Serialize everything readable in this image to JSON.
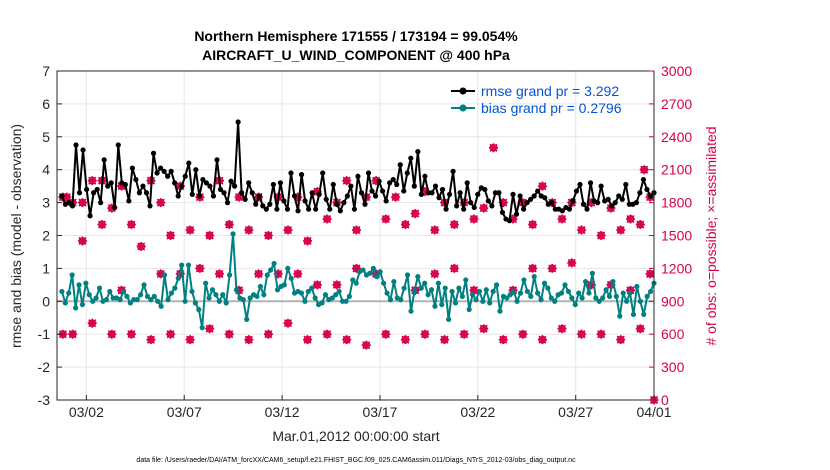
{
  "chart_data": {
    "type": "line",
    "title_line1": "Northern Hemisphere 171555 / 173194 = 99.054%",
    "title_line2": "AIRCRAFT_U_WIND_COMPONENT @ 400 hPa",
    "xlabel": "Mar.01,2012 00:00:00 start",
    "ylabel_left": "rmse and bias (model - observation)",
    "ylabel_right": "# of obs: o=possible; ×=assimilated",
    "footnote": "data file: /Users/raeder/DAI/ATM_forcXX/CAM6_setup/f.e21.FHIST_BGC.f09_025.CAM6assim.011/Diags_NTrS_2012-03/obs_diag_output.nc",
    "xlim": [
      0.5,
      31.0
    ],
    "ylim_left": [
      -3,
      7
    ],
    "ylim_right": [
      0,
      3000
    ],
    "grid": true,
    "x_ticks": [
      {
        "x": 2,
        "label": "03/02"
      },
      {
        "x": 7,
        "label": "03/07"
      },
      {
        "x": 12,
        "label": "03/12"
      },
      {
        "x": 17,
        "label": "03/17"
      },
      {
        "x": 22,
        "label": "03/22"
      },
      {
        "x": 27,
        "label": "03/27"
      },
      {
        "x": 31,
        "label": "04/01"
      }
    ],
    "y_ticks_left": [
      -3,
      -2,
      -1,
      0,
      1,
      2,
      3,
      4,
      5,
      6,
      7
    ],
    "y_ticks_right": [
      0,
      300,
      600,
      900,
      1200,
      1500,
      1800,
      2100,
      2400,
      2700,
      3000
    ],
    "legend": [
      {
        "label": "rmse grand pr = 3.292",
        "color": "#000000"
      },
      {
        "label": "bias grand pr = 0.2796",
        "color": "#008080"
      }
    ],
    "colors": {
      "rmse": "#000000",
      "bias": "#008080",
      "obs": "#d6004f",
      "zero": "#b3b3b3"
    },
    "rmse": [
      3.2,
      2.95,
      3.0,
      2.9,
      4.75,
      3.3,
      4.6,
      3.4,
      2.6,
      3.3,
      3.4,
      3.0,
      4.3,
      3.5,
      3.6,
      2.85,
      4.75,
      3.6,
      3.55,
      3.05,
      4.05,
      3.7,
      3.3,
      3.5,
      3.3,
      2.9,
      4.5,
      3.9,
      4.05,
      3.95,
      3.8,
      3.95,
      3.6,
      3.2,
      3.5,
      3.8,
      4.2,
      3.25,
      4.0,
      3.2,
      3.7,
      3.6,
      3.5,
      3.2,
      4.3,
      3.4,
      3.3,
      3.0,
      3.65,
      3.5,
      5.45,
      3.3,
      3.1,
      3.6,
      3.3,
      2.95,
      3.2,
      2.9,
      2.8,
      2.95,
      3.55,
      2.8,
      3.6,
      3.05,
      2.8,
      3.9,
      3.2,
      2.75,
      3.85,
      3.05,
      2.8,
      3.3,
      2.8,
      3.25,
      3.9,
      3.1,
      2.8,
      3.55,
      2.95,
      2.75,
      3.0,
      3.2,
      3.5,
      2.8,
      3.8,
      3.3,
      2.95,
      3.9,
      3.35,
      3.2,
      3.65,
      3.35,
      3.05,
      3.6,
      3.7,
      3.55,
      4.15,
      3.35,
      3.9,
      4.35,
      3.5,
      4.55,
      3.25,
      3.8,
      3.3,
      3.3,
      3.5,
      3.15,
      3.4,
      2.8,
      3.25,
      3.95,
      2.9,
      3.3,
      2.8,
      3.6,
      3.0,
      2.85,
      3.25,
      3.45,
      3.4,
      3.05,
      2.9,
      3.3,
      3.3,
      2.7,
      2.5,
      2.45,
      3.25,
      2.65,
      3.2,
      2.8,
      3.0,
      3.1,
      3.2,
      3.35,
      3.2,
      3.15,
      2.95,
      3.0,
      2.8,
      2.8,
      2.75,
      2.85,
      2.8,
      3.05,
      3.35,
      3.55,
      2.95,
      2.8,
      3.6,
      3.05,
      3.0,
      3.5,
      3.05,
      3.1,
      2.9,
      3.0,
      3.2,
      3.1,
      3.55,
      2.95,
      2.95,
      3.0,
      3.3,
      3.7,
      3.4,
      3.2,
      3.3
    ],
    "bias": [
      0.3,
      -0.05,
      0.25,
      0.8,
      -0.2,
      0.5,
      -0.1,
      0.55,
      0.2,
      0.0,
      0.1,
      0.4,
      0.0,
      0.05,
      0.3,
      0.1,
      0.1,
      0.05,
      0.3,
      0.15,
      -0.05,
      0.05,
      0.05,
      0.2,
      0.5,
      0.15,
      0.05,
      0.15,
      0.0,
      -0.15,
      0.8,
      0.05,
      0.25,
      0.4,
      0.7,
      1.1,
      0.0,
      1.1,
      0.3,
      -0.05,
      -0.25,
      -0.8,
      0.55,
      0.1,
      0.35,
      0.2,
      0.0,
      0.2,
      -0.05,
      0.8,
      2.05,
      0.35,
      0.1,
      0.05,
      -0.55,
      0.1,
      0.2,
      0.15,
      0.45,
      0.2,
      0.8,
      0.95,
      1.15,
      0.35,
      0.45,
      0.5,
      1.0,
      0.7,
      0.25,
      0.3,
      0.25,
      0.0,
      0.3,
      0.4,
      0.1,
      -0.1,
      -0.05,
      0.2,
      0.05,
      0.1,
      0.2,
      0.3,
      0.0,
      0.0,
      0.15,
      0.65,
      0.55,
      0.9,
      0.95,
      0.8,
      0.85,
      1.0,
      0.75,
      0.9,
      0.55,
      0.25,
      0.05,
      0.6,
      0.1,
      0.05,
      0.4,
      0.8,
      -0.3,
      0.3,
      0.75,
      0.4,
      0.55,
      0.2,
      0.35,
      -0.15,
      0.55,
      -0.1,
      0.4,
      -0.55,
      0.3,
      -0.05,
      0.4,
      0.15,
      0.65,
      -0.25,
      0.2,
      0.05,
      0.3,
      0.0,
      0.35,
      -0.05,
      0.3,
      0.5,
      -0.3,
      0.15,
      0.1,
      0.2,
      0.3,
      0.0,
      0.25,
      0.65,
      0.3,
      0.15,
      0.75,
      0.25,
      0.05,
      0.55,
      0.4,
      0.1,
      0.0,
      0.2,
      0.25,
      0.5,
      0.3,
      0.1,
      -0.1,
      0.25,
      0.1,
      0.6,
      0.25,
      0.85,
      0.1,
      0.0,
      0.1,
      0.35,
      0.15,
      0.6,
      0.15,
      -0.45,
      0.25,
      0.0,
      0.25,
      -0.4,
      0.45,
      0.0,
      -0.4,
      0.15,
      0.3,
      0.55
    ],
    "obs_possible": [
      [
        0.8,
        1850
      ],
      [
        1.0,
        1850
      ],
      [
        1.3,
        1800
      ],
      [
        1.8,
        1450
      ],
      [
        2.3,
        2000
      ],
      [
        2.8,
        1600
      ],
      [
        3.3,
        1750
      ],
      [
        3.8,
        1950
      ],
      [
        4.3,
        1600
      ],
      [
        4.8,
        1400
      ],
      [
        5.3,
        2000
      ],
      [
        5.8,
        1800
      ],
      [
        6.3,
        1500
      ],
      [
        6.8,
        1950
      ],
      [
        7.3,
        1550
      ],
      [
        7.8,
        1850
      ],
      [
        8.3,
        1500
      ],
      [
        8.8,
        2000
      ],
      [
        9.3,
        1600
      ],
      [
        9.8,
        1850
      ],
      [
        10.3,
        1550
      ],
      [
        10.8,
        1850
      ],
      [
        11.3,
        1500
      ],
      [
        11.8,
        1850
      ],
      [
        12.3,
        1550
      ],
      [
        12.8,
        1850
      ],
      [
        13.3,
        1450
      ],
      [
        13.8,
        1900
      ],
      [
        14.3,
        1650
      ],
      [
        14.8,
        1800
      ],
      [
        15.3,
        2000
      ],
      [
        15.8,
        1550
      ],
      [
        16.3,
        1850
      ],
      [
        16.8,
        2000
      ],
      [
        17.3,
        1650
      ],
      [
        17.8,
        1850
      ],
      [
        18.3,
        1600
      ],
      [
        18.8,
        1700
      ],
      [
        19.3,
        1900
      ],
      [
        19.8,
        1550
      ],
      [
        20.3,
        1800
      ],
      [
        20.8,
        1600
      ],
      [
        21.3,
        1800
      ],
      [
        21.8,
        1650
      ],
      [
        22.3,
        1750
      ],
      [
        22.8,
        2300
      ],
      [
        23.3,
        1800
      ],
      [
        23.8,
        1650
      ],
      [
        24.3,
        1800
      ],
      [
        24.8,
        1600
      ],
      [
        25.3,
        1950
      ],
      [
        25.8,
        1800
      ],
      [
        26.3,
        1650
      ],
      [
        26.8,
        1800
      ],
      [
        27.3,
        1550
      ],
      [
        27.8,
        1800
      ],
      [
        28.3,
        1500
      ],
      [
        28.8,
        1750
      ],
      [
        29.3,
        1550
      ],
      [
        29.8,
        1650
      ],
      [
        30.3,
        1600
      ],
      [
        30.8,
        1850
      ]
    ],
    "obs_assimilated": [
      [
        0.8,
        1850
      ],
      [
        1.0,
        1850
      ],
      [
        1.3,
        1800
      ],
      [
        1.8,
        1450
      ],
      [
        2.3,
        2000
      ],
      [
        2.8,
        1600
      ],
      [
        3.3,
        1750
      ],
      [
        3.8,
        1950
      ],
      [
        4.3,
        1600
      ],
      [
        4.8,
        1400
      ],
      [
        5.3,
        2000
      ],
      [
        5.8,
        1800
      ],
      [
        6.3,
        1500
      ],
      [
        6.8,
        1950
      ],
      [
        7.3,
        1550
      ],
      [
        7.8,
        1850
      ],
      [
        8.3,
        1500
      ],
      [
        8.8,
        2000
      ],
      [
        9.3,
        1600
      ],
      [
        9.8,
        1850
      ],
      [
        10.3,
        1550
      ],
      [
        10.8,
        1850
      ],
      [
        11.3,
        1500
      ],
      [
        11.8,
        1850
      ],
      [
        12.3,
        1550
      ],
      [
        12.8,
        1850
      ],
      [
        13.3,
        1450
      ],
      [
        13.8,
        1900
      ],
      [
        14.3,
        1650
      ],
      [
        14.8,
        1800
      ],
      [
        15.3,
        2000
      ],
      [
        15.8,
        1550
      ],
      [
        16.3,
        1850
      ],
      [
        16.8,
        2000
      ],
      [
        17.3,
        1650
      ],
      [
        17.8,
        1850
      ],
      [
        18.3,
        1600
      ],
      [
        18.8,
        1700
      ],
      [
        19.3,
        1900
      ],
      [
        19.8,
        1550
      ],
      [
        20.3,
        1800
      ],
      [
        20.8,
        1600
      ],
      [
        21.3,
        1800
      ],
      [
        21.8,
        1650
      ],
      [
        22.3,
        1750
      ],
      [
        22.8,
        2300
      ],
      [
        23.3,
        1800
      ],
      [
        23.8,
        1650
      ],
      [
        24.3,
        1800
      ],
      [
        24.8,
        1600
      ],
      [
        25.3,
        1950
      ],
      [
        25.8,
        1800
      ],
      [
        26.3,
        1650
      ],
      [
        26.8,
        1800
      ],
      [
        27.3,
        1550
      ],
      [
        27.8,
        1800
      ],
      [
        28.3,
        1500
      ],
      [
        28.8,
        1750
      ],
      [
        29.3,
        1550
      ],
      [
        29.8,
        1650
      ],
      [
        30.3,
        1600
      ],
      [
        30.8,
        1850
      ]
    ],
    "obs_low_possible": [
      [
        0.8,
        600
      ],
      [
        1.3,
        600
      ],
      [
        2.3,
        700
      ],
      [
        3.3,
        600
      ],
      [
        4.3,
        600
      ],
      [
        5.3,
        550
      ],
      [
        6.3,
        600
      ],
      [
        7.3,
        550
      ],
      [
        8.3,
        650
      ],
      [
        9.3,
        600
      ],
      [
        10.3,
        550
      ],
      [
        11.3,
        600
      ],
      [
        12.3,
        700
      ],
      [
        13.3,
        550
      ],
      [
        14.3,
        600
      ],
      [
        15.3,
        550
      ],
      [
        16.3,
        500
      ],
      [
        17.3,
        600
      ],
      [
        18.3,
        550
      ],
      [
        19.3,
        600
      ],
      [
        20.3,
        550
      ],
      [
        21.3,
        600
      ],
      [
        22.3,
        650
      ],
      [
        23.3,
        550
      ],
      [
        24.3,
        600
      ],
      [
        25.3,
        550
      ],
      [
        26.3,
        650
      ],
      [
        27.3,
        600
      ],
      [
        28.3,
        600
      ],
      [
        29.3,
        550
      ],
      [
        30.3,
        650
      ],
      [
        30.8,
        1150
      ],
      [
        31.0,
        0
      ]
    ],
    "obs_mid_possible": [
      [
        1.8,
        1800
      ],
      [
        2.8,
        2000
      ],
      [
        3.8,
        1000
      ],
      [
        5.8,
        1150
      ],
      [
        6.8,
        1150
      ],
      [
        7.8,
        1200
      ],
      [
        8.8,
        1150
      ],
      [
        9.8,
        1000
      ],
      [
        10.8,
        1150
      ],
      [
        11.8,
        1150
      ],
      [
        12.8,
        1150
      ],
      [
        13.8,
        1050
      ],
      [
        14.8,
        1050
      ],
      [
        15.8,
        1200
      ],
      [
        16.8,
        1150
      ],
      [
        18.8,
        1000
      ],
      [
        19.8,
        1150
      ],
      [
        20.8,
        1200
      ],
      [
        21.8,
        1000
      ],
      [
        23.8,
        1000
      ],
      [
        24.8,
        1200
      ],
      [
        25.8,
        1200
      ],
      [
        26.8,
        1250
      ],
      [
        27.8,
        1050
      ],
      [
        28.8,
        1050
      ],
      [
        29.8,
        1000
      ],
      [
        30.5,
        2100
      ]
    ]
  }
}
